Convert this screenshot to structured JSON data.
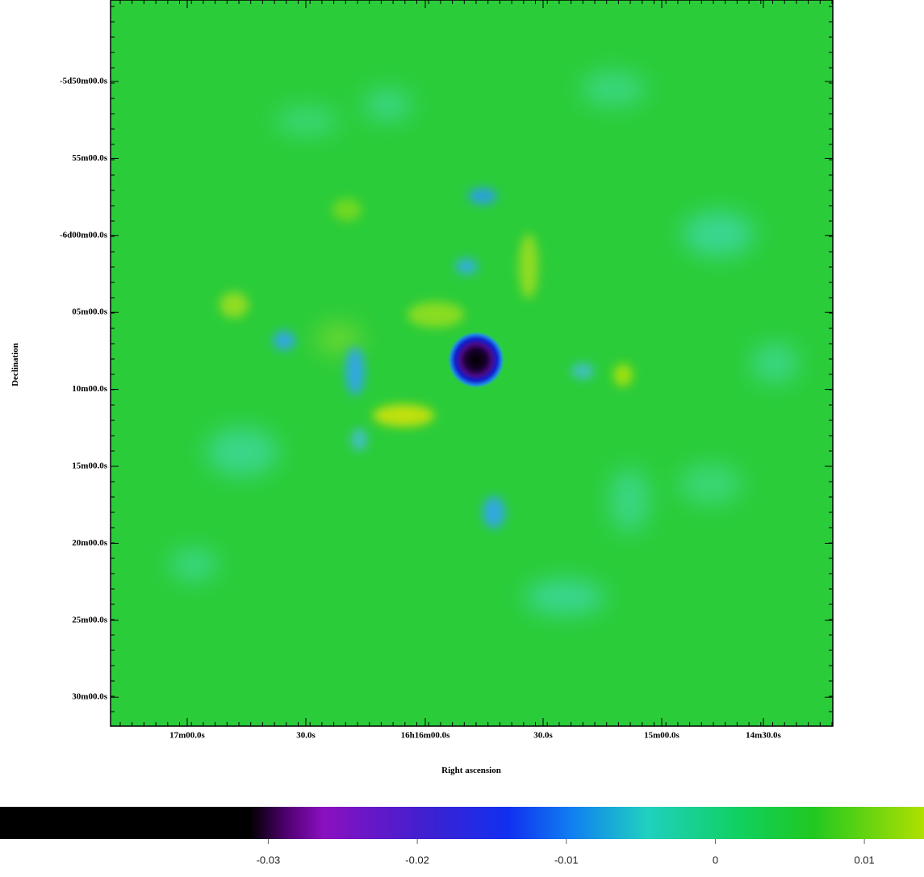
{
  "chart_data": {
    "type": "image",
    "xlabel": "Right ascension",
    "ylabel": "Declination",
    "x_tick_labels": [
      "17m00.0s",
      "30.0s",
      "16h16m00.0s",
      "30.0s",
      "15m00.0s",
      "14m30.0s"
    ],
    "y_tick_labels": [
      "-5d50m00.0s",
      "55m00.0s",
      "-6d00m00.0s",
      "05m00.0s",
      "10m00.0s",
      "15m00.0s",
      "20m00.0s",
      "25m00.0s",
      "30m00.0s"
    ],
    "colorbar": {
      "clim": [
        -0.048,
        0.014
      ],
      "ticks": [
        -0.03,
        -0.02,
        -0.01,
        0,
        0.01
      ]
    }
  }
}
